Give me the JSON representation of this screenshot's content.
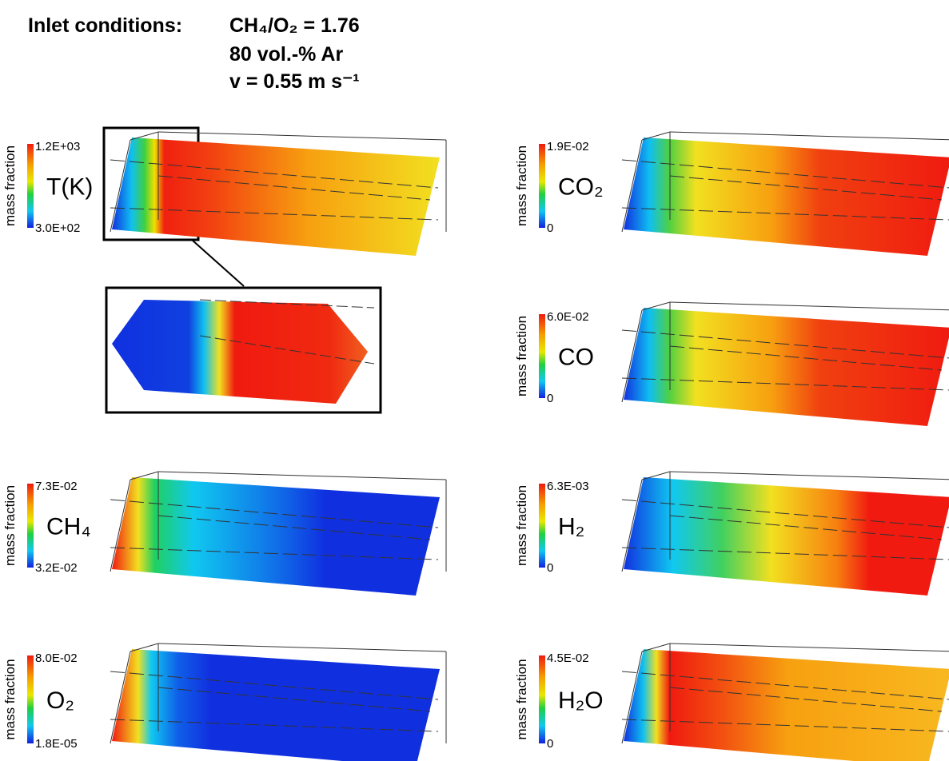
{
  "header": {
    "title": "Inlet conditions:",
    "lines": [
      "CH₄/O₂ = 1.76",
      "80 vol.-% Ar",
      "v = 0.55 m s⁻¹"
    ]
  },
  "panels": [
    {
      "axis_label": "mass fraction",
      "species": "T(K)",
      "max": "1.2E+03",
      "min": "3.0E+02"
    },
    {
      "axis_label": "mass fraction",
      "species": "CO₂",
      "max": "1.9E-02",
      "min": "0"
    },
    {
      "axis_label": "mass fraction",
      "species": "CO",
      "max": "6.0E-02",
      "min": "0"
    },
    {
      "axis_label": "mass fraction",
      "species": "CH₄",
      "max": "7.3E-02",
      "min": "3.2E-02"
    },
    {
      "axis_label": "mass fraction",
      "species": "H₂",
      "max": "6.3E-03",
      "min": "0"
    },
    {
      "axis_label": "mass fraction",
      "species": "O₂",
      "max": "8.0E-02",
      "min": "1.8E-05"
    },
    {
      "axis_label": "mass fraction",
      "species": "H₂O",
      "max": "4.5E-02",
      "min": "0"
    }
  ]
}
